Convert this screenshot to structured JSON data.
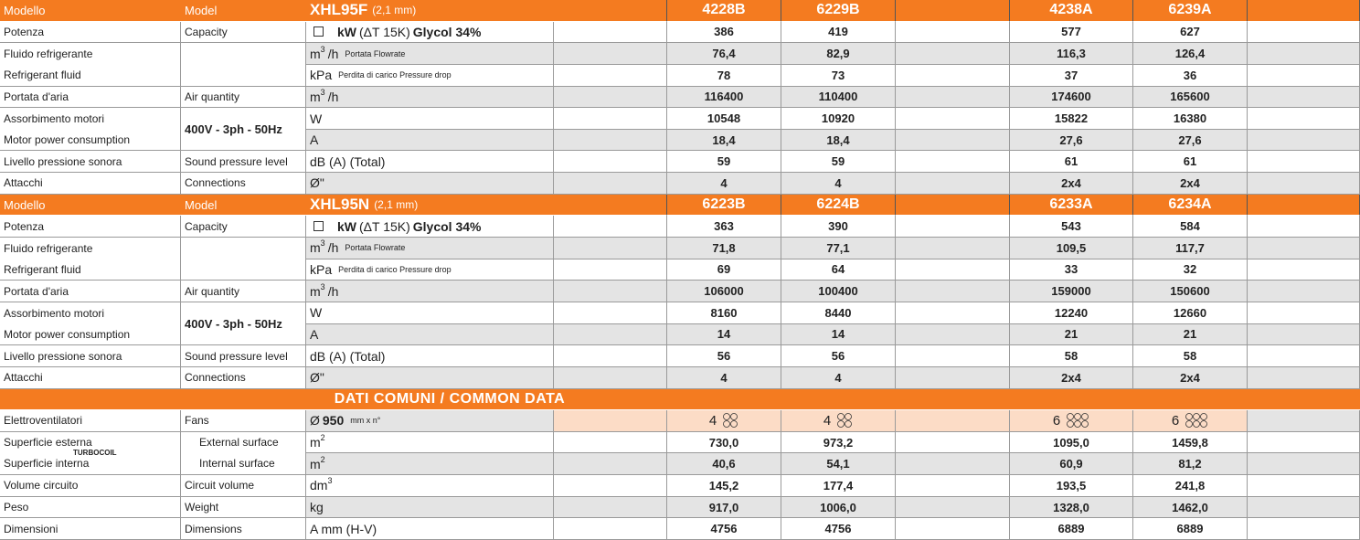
{
  "sections": [
    {
      "header": {
        "it": "Modello",
        "en": "Model",
        "model": "XHL95F",
        "model_note": "(2,1 mm)",
        "units": [
          "4228B",
          "6229B",
          "4238A",
          "6239A"
        ]
      },
      "rows": [
        {
          "it": "Potenza",
          "en": "Capacity",
          "unit": [
            {
              "t": "kW",
              "s": "b"
            },
            {
              "t": "(ΔT 15K)"
            },
            {
              "t": "Glycol 34%",
              "s": "b"
            }
          ],
          "values": [
            "386",
            "419",
            "577",
            "627"
          ]
        },
        {
          "it": "Fluido refrigerante",
          "en": "Refrigerant fluid",
          "rows": [
            {
              "unit": [
                {
                  "t": "m"
                },
                {
                  "t": "3",
                  "s": "sup"
                },
                {
                  "t": "/h"
                },
                {
                  "t": "Portata  Flowrate",
                  "s": "note"
                }
              ],
              "values": [
                "76,4",
                "82,9",
                "116,3",
                "126,4"
              ]
            },
            {
              "unit": [
                {
                  "t": "kPa"
                },
                {
                  "t": "Perdita di carico  Pressure drop",
                  "s": "note"
                }
              ],
              "values": [
                "78",
                "73",
                "37",
                "36"
              ]
            }
          ]
        },
        {
          "it": "Portata d'aria",
          "en": "Air quantity",
          "unit": [
            {
              "t": "m"
            },
            {
              "t": "3",
              "s": "sup"
            },
            {
              "t": "/h"
            }
          ],
          "values": [
            "116400",
            "110400",
            "174600",
            "165600"
          ]
        },
        {
          "it": "Assorbimento motori",
          "en": "Motor power consumption",
          "spec": "400V - 3ph - 50Hz",
          "rows": [
            {
              "unit": [
                {
                  "t": "W"
                }
              ],
              "values": [
                "10548",
                "10920",
                "15822",
                "16380"
              ]
            },
            {
              "unit": [
                {
                  "t": "A"
                }
              ],
              "values": [
                "18,4",
                "18,4",
                "27,6",
                "27,6"
              ]
            }
          ]
        },
        {
          "it": "Livello pressione sonora",
          "en": "Sound pressure level",
          "unit": [
            {
              "t": "dB (A) (Total)"
            }
          ],
          "values": [
            "59",
            "59",
            "61",
            "61"
          ]
        },
        {
          "it": "Attacchi",
          "en": "Connections",
          "unit": [
            {
              "t": "Ø\""
            }
          ],
          "values": [
            "4",
            "4",
            "2x4",
            "2x4"
          ]
        }
      ]
    },
    {
      "header": {
        "it": "Modello",
        "en": "Model",
        "model": "XHL95N",
        "model_note": "(2,1 mm)",
        "units": [
          "6223B",
          "6224B",
          "6233A",
          "6234A"
        ]
      },
      "rows": [
        {
          "it": "Potenza",
          "en": "Capacity",
          "unit": [
            {
              "t": "kW",
              "s": "b"
            },
            {
              "t": "(ΔT 15K)"
            },
            {
              "t": "Glycol 34%",
              "s": "b"
            }
          ],
          "values": [
            "363",
            "390",
            "543",
            "584"
          ]
        },
        {
          "it": "Fluido refrigerante",
          "en": "Refrigerant fluid",
          "rows": [
            {
              "unit": [
                {
                  "t": "m"
                },
                {
                  "t": "3",
                  "s": "sup"
                },
                {
                  "t": "/h"
                },
                {
                  "t": "Portata  Flowrate",
                  "s": "note"
                }
              ],
              "values": [
                "71,8",
                "77,1",
                "109,5",
                "117,7"
              ]
            },
            {
              "unit": [
                {
                  "t": "kPa"
                },
                {
                  "t": "Perdita di carico  Pressure drop",
                  "s": "note"
                }
              ],
              "values": [
                "69",
                "64",
                "33",
                "32"
              ]
            }
          ]
        },
        {
          "it": "Portata d'aria",
          "en": "Air quantity",
          "unit": [
            {
              "t": "m"
            },
            {
              "t": "3",
              "s": "sup"
            },
            {
              "t": "/h"
            }
          ],
          "values": [
            "106000",
            "100400",
            "159000",
            "150600"
          ]
        },
        {
          "it": "Assorbimento motori",
          "en": "Motor power consumption",
          "spec": "400V - 3ph - 50Hz",
          "rows": [
            {
              "unit": [
                {
                  "t": "W"
                }
              ],
              "values": [
                "8160",
                "8440",
                "12240",
                "12660"
              ]
            },
            {
              "unit": [
                {
                  "t": "A"
                }
              ],
              "values": [
                "14",
                "14",
                "21",
                "21"
              ]
            }
          ]
        },
        {
          "it": "Livello pressione sonora",
          "en": "Sound pressure level",
          "unit": [
            {
              "t": "dB (A) (Total)"
            }
          ],
          "values": [
            "56",
            "56",
            "58",
            "58"
          ]
        },
        {
          "it": "Attacchi",
          "en": "Connections",
          "unit": [
            {
              "t": "Ø\""
            }
          ],
          "values": [
            "4",
            "4",
            "2x4",
            "2x4"
          ]
        }
      ]
    },
    {
      "header": {
        "title": "DATI COMUNI  /  COMMON DATA"
      },
      "rows": [
        {
          "it": "Elettroventilatori",
          "en": "Fans",
          "unit": [
            {
              "t": "Ø"
            },
            {
              "t": "950",
              "s": "b"
            },
            {
              "t": "mm x n°",
              "s": "note"
            }
          ],
          "values": [
            "4",
            "4",
            "6",
            "6"
          ],
          "fill": "#fcdcc6"
        },
        {
          "label": "TURBOCOIL",
          "rows": [
            {
              "it": "Superficie esterna",
              "en": "External surface",
              "unit": [
                {
                  "t": "m"
                },
                {
                  "t": "2",
                  "s": "sup"
                }
              ],
              "values": [
                "730,0",
                "973,2",
                "1095,0",
                "1459,8"
              ]
            },
            {
              "it": "Superficie interna",
              "en": "Internal surface",
              "unit": [
                {
                  "t": "m"
                },
                {
                  "t": "2",
                  "s": "sup"
                }
              ],
              "values": [
                "40,6",
                "54,1",
                "60,9",
                "81,2"
              ]
            }
          ]
        },
        {
          "it": "Volume circuito",
          "en": "Circuit volume",
          "unit": [
            {
              "t": "dm"
            },
            {
              "t": "3",
              "s": "sup"
            }
          ],
          "values": [
            "145,2",
            "177,4",
            "193,5",
            "241,8"
          ]
        },
        {
          "it": "Peso",
          "en": "Weight",
          "unit": [
            {
              "t": "kg"
            }
          ],
          "values": [
            "917,0",
            "1006,0",
            "1328,0",
            "1462,0"
          ]
        },
        {
          "it": "Dimensioni",
          "en": "Dimensions",
          "unit": [
            {
              "t": "A mm (H-V)"
            }
          ],
          "values": [
            "4756",
            "4756",
            "6889",
            "6889"
          ]
        }
      ]
    }
  ]
}
